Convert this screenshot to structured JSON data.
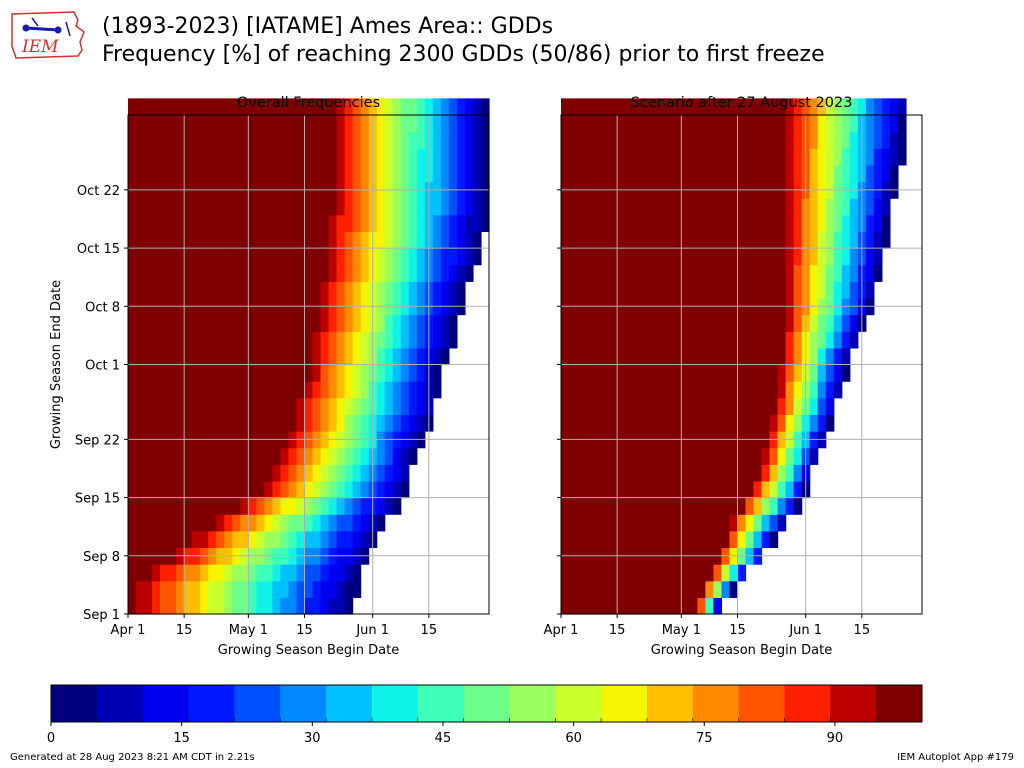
{
  "header": {
    "title_line1": "(1893-2023) [IATAME] Ames Area:: GDDs",
    "title_line2": "Frequency [%] of reaching 2300 GDDs (50/86) prior to first freeze",
    "logo_text": "IEM"
  },
  "footer": {
    "generated": "Generated at 28 Aug 2023 8:21 AM CDT in 2.21s",
    "app": "IEM Autoplot App #179"
  },
  "colors": {
    "colormap": [
      "#00007f",
      "#0000b7",
      "#0000f1",
      "#0018ff",
      "#0050ff",
      "#0088ff",
      "#00c0ff",
      "#0ff2e7",
      "#3dffb9",
      "#6cff8a",
      "#9aff5c",
      "#c9ff2d",
      "#f7f400",
      "#ffbf00",
      "#ff8a00",
      "#ff5500",
      "#ff2000",
      "#bc0000",
      "#7f0000"
    ],
    "grid": "#b0b0b0"
  },
  "chart_data": [
    {
      "type": "heatmap",
      "title": "Overall Frequencies",
      "xlabel": "Growing Season Begin Date",
      "ylabel": "Growing Season End Date",
      "x_ticks": [
        "Apr 1",
        "15",
        "May 1",
        "15",
        "Jun 1",
        "15"
      ],
      "y_ticks": [
        "Sep 1",
        "Sep 8",
        "Sep 15",
        "Sep 22",
        "Oct 1",
        "Oct 8",
        "Oct 15",
        "Oct 22"
      ],
      "x_range": [
        "Apr 1",
        "Jun 30"
      ],
      "y_range": [
        "Sep 1",
        "Oct 31"
      ],
      "value_range": [
        0,
        100
      ],
      "grid": true,
      "contours": [
        {
          "end": "Sep 1",
          "begin_at_100": "Mar 31",
          "begin_at_0": "May 27"
        },
        {
          "end": "Sep 5",
          "begin_at_100": "Mar 31",
          "begin_at_0": "May 29"
        },
        {
          "end": "Sep 8",
          "begin_at_100": "Apr 10",
          "begin_at_0": "Jun 1"
        },
        {
          "end": "Sep 12",
          "begin_at_100": "Apr 20",
          "begin_at_0": "Jun 5"
        },
        {
          "end": "Sep 15",
          "begin_at_100": "Apr 30",
          "begin_at_0": "Jun 9"
        },
        {
          "end": "Sep 18",
          "begin_at_100": "May 6",
          "begin_at_0": "Jun 11"
        },
        {
          "end": "Sep 22",
          "begin_at_100": "May 10",
          "begin_at_0": "Jun 14"
        },
        {
          "end": "Sep 26",
          "begin_at_100": "May 12",
          "begin_at_0": "Jun 17"
        },
        {
          "end": "Oct 1",
          "begin_at_100": "May 15",
          "begin_at_0": "Jun 19"
        },
        {
          "end": "Oct 5",
          "begin_at_100": "May 16",
          "begin_at_0": "Jun 22"
        },
        {
          "end": "Oct 8",
          "begin_at_100": "May 17",
          "begin_at_0": "Jun 24"
        },
        {
          "end": "Oct 12",
          "begin_at_100": "May 18",
          "begin_at_0": "Jun 26"
        },
        {
          "end": "Oct 15",
          "begin_at_100": "May 19",
          "begin_at_0": "Jun 28"
        },
        {
          "end": "Oct 20",
          "begin_at_100": "May 20",
          "begin_at_0": "Jun 30"
        },
        {
          "end": "Oct 31",
          "begin_at_100": "May 21",
          "begin_at_0": "Jun 30"
        }
      ]
    },
    {
      "type": "heatmap",
      "title": "Scenario after 27 August 2023",
      "xlabel": "Growing Season Begin Date",
      "ylabel": "",
      "x_ticks": [
        "Apr 1",
        "15",
        "May 1",
        "15",
        "Jun 1",
        "15"
      ],
      "y_ticks": [
        "Sep 1",
        "Sep 8",
        "Sep 15",
        "Sep 22",
        "Oct 1",
        "Oct 8",
        "Oct 15",
        "Oct 22"
      ],
      "x_range": [
        "Apr 1",
        "Jun 30"
      ],
      "y_range": [
        "Sep 1",
        "Oct 31"
      ],
      "value_range": [
        0,
        100
      ],
      "grid": true,
      "contours": [
        {
          "end": "Sep 1",
          "begin_at_100": "May 4",
          "begin_at_0": "May 9"
        },
        {
          "end": "Sep 5",
          "begin_at_100": "May 7",
          "begin_at_0": "May 16"
        },
        {
          "end": "Sep 8",
          "begin_at_100": "May 10",
          "begin_at_0": "May 22"
        },
        {
          "end": "Sep 12",
          "begin_at_100": "May 13",
          "begin_at_0": "May 27"
        },
        {
          "end": "Sep 15",
          "begin_at_100": "May 17",
          "begin_at_0": "Jun 1"
        },
        {
          "end": "Sep 18",
          "begin_at_100": "May 20",
          "begin_at_0": "Jun 3"
        },
        {
          "end": "Sep 22",
          "begin_at_100": "May 22",
          "begin_at_0": "Jun 6"
        },
        {
          "end": "Sep 26",
          "begin_at_100": "May 24",
          "begin_at_0": "Jun 9"
        },
        {
          "end": "Oct 1",
          "begin_at_100": "May 25",
          "begin_at_0": "Jun 12"
        },
        {
          "end": "Oct 5",
          "begin_at_100": "May 26",
          "begin_at_0": "Jun 15"
        },
        {
          "end": "Oct 8",
          "begin_at_100": "May 26",
          "begin_at_0": "Jun 18"
        },
        {
          "end": "Oct 12",
          "begin_at_100": "May 26",
          "begin_at_0": "Jun 20"
        },
        {
          "end": "Oct 15",
          "begin_at_100": "May 26",
          "begin_at_0": "Jun 21"
        },
        {
          "end": "Oct 20",
          "begin_at_100": "May 26",
          "begin_at_0": "Jun 23"
        },
        {
          "end": "Oct 31",
          "begin_at_100": "May 26",
          "begin_at_0": "Jun 27"
        }
      ]
    }
  ],
  "colorbar": {
    "ticks": [
      "0",
      "15",
      "30",
      "45",
      "60",
      "75",
      "90"
    ],
    "range": [
      0,
      100
    ]
  }
}
